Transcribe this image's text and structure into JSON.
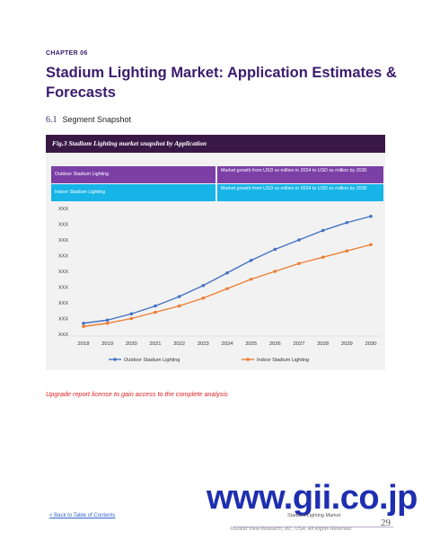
{
  "header": {
    "chapter": "CHAPTER 06",
    "title": "Stadium Lighting Market: Application Estimates & Forecasts"
  },
  "section": {
    "number": "6.1",
    "title": "Segment Snapshot"
  },
  "figure": {
    "caption": "Fig.3  Stadium Lighting market snapshot by Application"
  },
  "segments": [
    {
      "name": "Outdoor Stadium Lighting",
      "growth": "Market growth from USD xx million in 2024 to USD xx million by 2030",
      "color": "#7b3fa6"
    },
    {
      "name": "Indoor Stadium Lighting",
      "growth": "Market growth from USD xx million in 2024 to USD xx million by 2030",
      "color": "#17b4e8"
    }
  ],
  "chart_data": {
    "type": "line",
    "x": [
      "2018",
      "2019",
      "2020",
      "2021",
      "2022",
      "2023",
      "2024",
      "2025",
      "2026",
      "2027",
      "2028",
      "2029",
      "2030"
    ],
    "y_tick_labels": [
      "XXX",
      "XXX",
      "XXX",
      "XXX",
      "XXX",
      "XXX",
      "XXX",
      "XXX",
      "XXX"
    ],
    "ylim": [
      0,
      8
    ],
    "grid": false,
    "legend_position": "bottom",
    "series": [
      {
        "name": "Outdoor Stadium Lighting",
        "color": "#4472c4",
        "values": [
          0.7,
          0.9,
          1.3,
          1.8,
          2.4,
          3.1,
          3.9,
          4.7,
          5.4,
          6.0,
          6.6,
          7.1,
          7.5
        ]
      },
      {
        "name": "Indoor Stadium Lighting",
        "color": "#ed7d31",
        "values": [
          0.5,
          0.7,
          1.0,
          1.4,
          1.8,
          2.3,
          2.9,
          3.5,
          4.0,
          4.5,
          4.9,
          5.3,
          5.7
        ]
      }
    ]
  },
  "notice": "Upgrade report license to gain access to the complete analysis",
  "watermark": "www.gii.co.jp",
  "footer": {
    "back_link": "< Back to Table of Contents",
    "report_name": "Stadium Lighting Market",
    "page": "29",
    "copyright": "©Grand View Research, Inc., USA. All Rights Reserved"
  }
}
